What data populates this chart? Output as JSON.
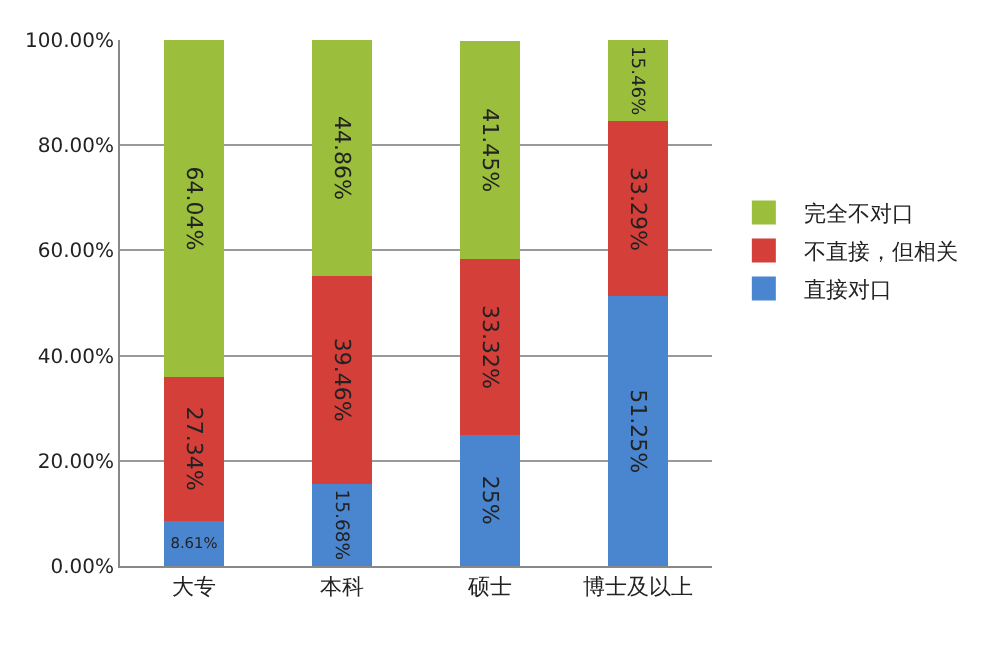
{
  "chart_data": {
    "type": "bar",
    "stacked": true,
    "categories": [
      "大专",
      "本科",
      "硕士",
      "博士及以上"
    ],
    "series": [
      {
        "name": "直接对口",
        "color": "#4a86d0",
        "values": [
          8.61,
          15.68,
          25,
          51.25
        ],
        "value_labels": [
          "8.61%",
          "15.68%",
          "25%",
          "51.25%"
        ]
      },
      {
        "name": "不直接，但相关",
        "color": "#d43f3a",
        "values": [
          27.34,
          39.46,
          33.32,
          33.29
        ],
        "value_labels": [
          "27.34%",
          "39.46%",
          "33.32%",
          "33.29%"
        ]
      },
      {
        "name": "完全不对口",
        "color": "#9bbf3c",
        "values": [
          64.04,
          44.86,
          41.45,
          15.46
        ],
        "value_labels": [
          "64.04%",
          "44.86%",
          "41.45%",
          "15.46%"
        ]
      }
    ],
    "ylim": [
      0,
      100
    ],
    "yticks": [
      {
        "value": 0,
        "label": "0.00%"
      },
      {
        "value": 20,
        "label": "20.00%"
      },
      {
        "value": 40,
        "label": "40.00%"
      },
      {
        "value": 60,
        "label": "60.00%"
      },
      {
        "value": 80,
        "label": "80.00%"
      },
      {
        "value": 100,
        "label": "100.00%"
      }
    ],
    "grid": "y",
    "legend": "right"
  }
}
